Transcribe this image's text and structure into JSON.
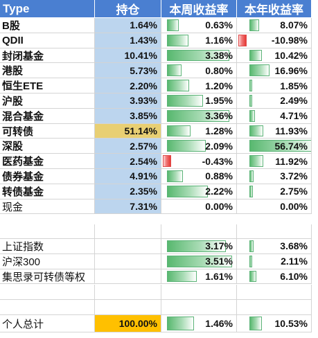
{
  "table": {
    "headers": [
      "Type",
      "持仓",
      "本周收益率",
      "本年收益率"
    ],
    "rows": [
      {
        "name": "B股",
        "holding": "1.64%",
        "week": "0.63%",
        "week_val": 0.63,
        "year": "8.07%",
        "year_val": 8.07,
        "holding_color": "blue"
      },
      {
        "name": "QDII",
        "holding": "1.43%",
        "week": "1.16%",
        "week_val": 1.16,
        "year": "-10.98%",
        "year_val": -10.98,
        "holding_color": "blue"
      },
      {
        "name": "封闭基金",
        "holding": "10.41%",
        "week": "3.38%",
        "week_val": 3.38,
        "year": "10.42%",
        "year_val": 10.42,
        "holding_color": "blue"
      },
      {
        "name": "港股",
        "holding": "5.73%",
        "week": "0.80%",
        "week_val": 0.8,
        "year": "16.96%",
        "year_val": 16.96,
        "holding_color": "blue"
      },
      {
        "name": "恒生ETE",
        "holding": "2.20%",
        "week": "1.20%",
        "week_val": 1.2,
        "year": "1.85%",
        "year_val": 1.85,
        "holding_color": "blue"
      },
      {
        "name": "沪股",
        "holding": "3.93%",
        "week": "1.95%",
        "week_val": 1.95,
        "year": "2.49%",
        "year_val": 2.49,
        "holding_color": "blue"
      },
      {
        "name": "混合基金",
        "holding": "3.85%",
        "week": "3.36%",
        "week_val": 3.36,
        "year": "4.71%",
        "year_val": 4.71,
        "holding_color": "blue"
      },
      {
        "name": "可转债",
        "holding": "51.14%",
        "week": "1.28%",
        "week_val": 1.28,
        "year": "11.93%",
        "year_val": 11.93,
        "holding_color": "gold"
      },
      {
        "name": "深股",
        "holding": "2.57%",
        "week": "2.09%",
        "week_val": 2.09,
        "year": "56.74%",
        "year_val": 56.74,
        "holding_color": "blue"
      },
      {
        "name": "医药基金",
        "holding": "2.54%",
        "week": "-0.43%",
        "week_val": -0.43,
        "year": "11.92%",
        "year_val": 11.92,
        "holding_color": "blue"
      },
      {
        "name": "债券基金",
        "holding": "4.91%",
        "week": "0.88%",
        "week_val": 0.88,
        "year": "3.72%",
        "year_val": 3.72,
        "holding_color": "blue"
      },
      {
        "name": "转债基金",
        "holding": "2.35%",
        "week": "2.22%",
        "week_val": 2.22,
        "year": "2.75%",
        "year_val": 2.75,
        "holding_color": "blue"
      },
      {
        "name": "现金",
        "holding": "7.31%",
        "week": "0.00%",
        "week_val": 0,
        "year": "0.00%",
        "year_val": 0,
        "holding_color": "blue",
        "light": true
      }
    ],
    "index_rows": [
      {
        "name": "上证指数",
        "week": "3.17%",
        "week_val": 3.17,
        "year": "3.68%",
        "year_val": 3.68
      },
      {
        "name": "沪深300",
        "week": "3.51%",
        "week_val": 3.51,
        "year": "2.11%",
        "year_val": 2.11
      },
      {
        "name": "集思录可转债等权",
        "week": "1.61%",
        "week_val": 1.61,
        "year": "6.10%",
        "year_val": 6.1
      }
    ],
    "total": {
      "name": "个人总计",
      "holding": "100.00%",
      "week": "1.46%",
      "week_val": 1.46,
      "year": "10.53%",
      "year_val": 10.53
    }
  },
  "colors": {
    "header_bg": "#4a7fd1",
    "holding_blue": "#bcd5ee",
    "holding_gold": "#e8cf73",
    "holding_orange": "#ffc000",
    "bar_green": "#58b86f",
    "bar_red": "#e53935"
  }
}
